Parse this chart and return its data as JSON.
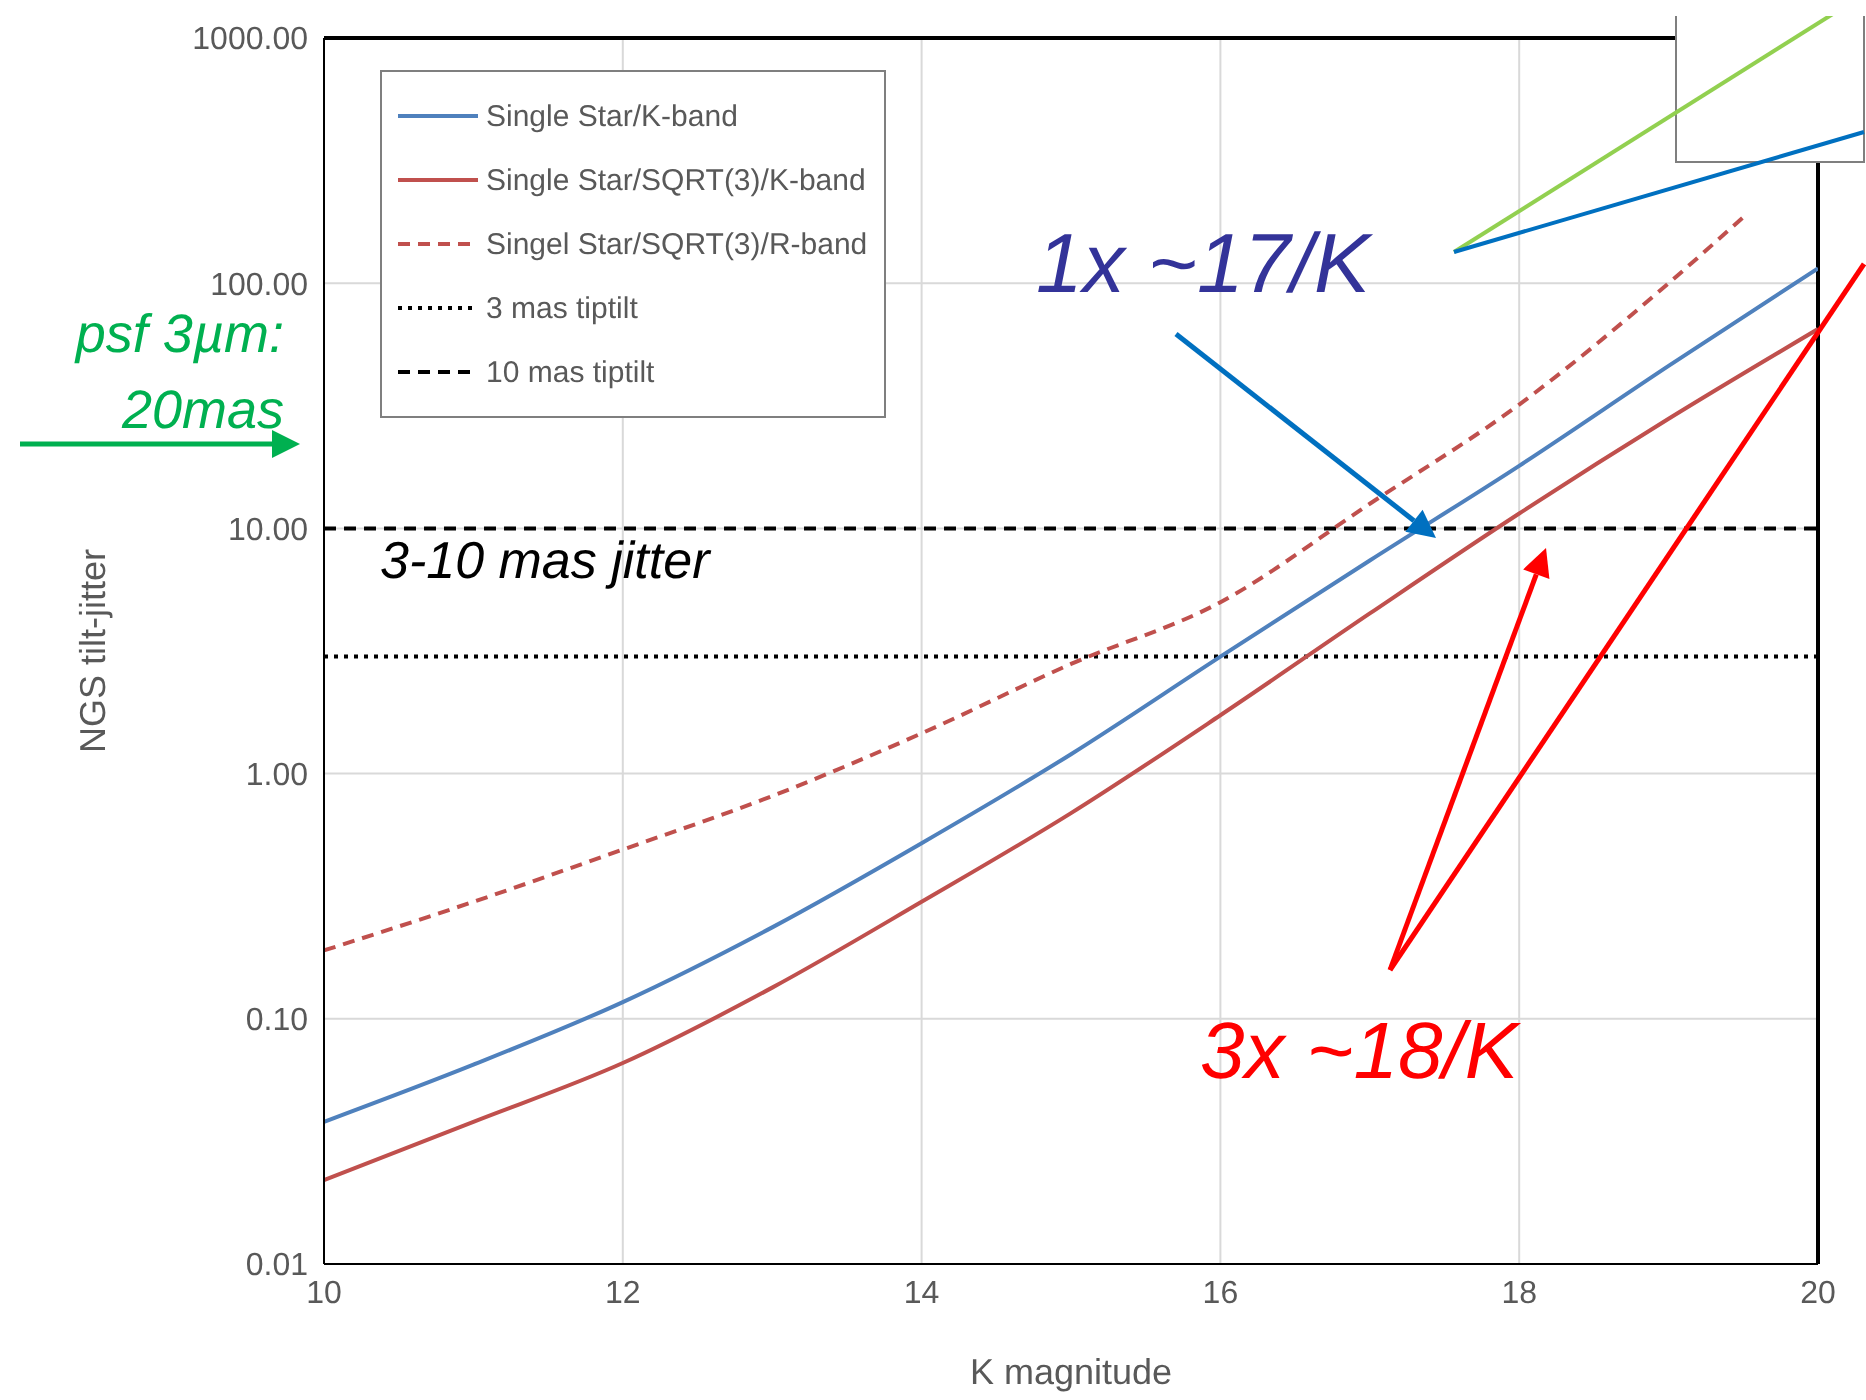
{
  "chart_data": {
    "type": "line",
    "xlabel": "K magnitude",
    "ylabel": "NGS tilt-jitter",
    "x": [
      10,
      11,
      12,
      13,
      14,
      15,
      16,
      17,
      18,
      19,
      20
    ],
    "series": [
      {
        "name": "Single Star/K-band",
        "color": "#4f81bd",
        "line_style": "solid",
        "values": [
          0.038,
          0.065,
          0.117,
          0.236,
          0.52,
          1.2,
          3.0,
          7.4,
          18,
          46,
          115
        ]
      },
      {
        "name": "Single Star/SQRT(3)/K-band",
        "color": "#c0504d",
        "line_style": "solid",
        "values": [
          0.022,
          0.038,
          0.066,
          0.134,
          0.3,
          0.69,
          1.73,
          4.5,
          11.5,
          28,
          65
        ]
      },
      {
        "name": "Singel Star/SQRT(3)/R-band",
        "color": "#c0504d",
        "line_style": "dashed",
        "x": [
          10,
          11,
          12,
          13,
          14,
          15,
          16,
          17,
          18,
          19,
          19.5
        ],
        "values": [
          0.19,
          0.3,
          0.49,
          0.81,
          1.46,
          2.8,
          5.0,
          12.6,
          32,
          100,
          186
        ]
      }
    ],
    "ref_lines": [
      {
        "axis": "y",
        "value": 3,
        "label": "3 mas tiptilt",
        "color": "#000000",
        "line_style": "dotted"
      },
      {
        "axis": "y",
        "value": 10,
        "label": "10 mas tiptilt",
        "color": "#000000",
        "line_style": "dashed"
      }
    ],
    "log": "y",
    "xlim": [
      10,
      20
    ],
    "xticks": [
      10,
      12,
      14,
      16,
      18,
      20
    ],
    "ylim": [
      0.01,
      1000
    ],
    "yticks": [
      {
        "value": 0.01,
        "label": "0.01"
      },
      {
        "value": 0.1,
        "label": "0.10"
      },
      {
        "value": 1,
        "label": "1.00"
      },
      {
        "value": 10,
        "label": "10.00"
      },
      {
        "value": 100,
        "label": "100.00"
      },
      {
        "value": 1000,
        "label": "1000.00"
      }
    ],
    "grid": true,
    "legend": "top left",
    "annotations": [
      "psf 3µm: 20mas",
      "1x ~17/K",
      "3x ~18/K",
      "3-10 mas jitter"
    ]
  }
}
